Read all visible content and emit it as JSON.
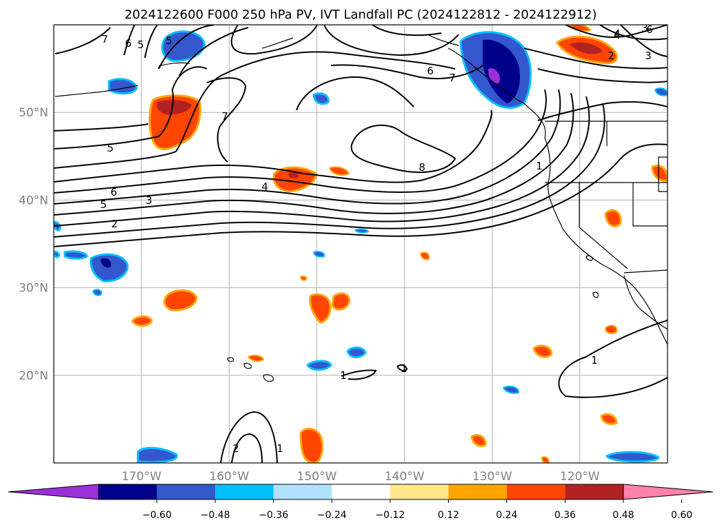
{
  "title": "2024122600 F000 250 hPa PV, IVT Landfall PC (2024122812 - 2024122912)",
  "map": {
    "lon_range": [
      -180,
      -110
    ],
    "lat_range": [
      10,
      60
    ],
    "grid": true,
    "lon_ticks": [
      {
        "lon": -170,
        "label": "170°W"
      },
      {
        "lon": -160,
        "label": "160°W"
      },
      {
        "lon": -150,
        "label": "150°W"
      },
      {
        "lon": -140,
        "label": "140°W"
      },
      {
        "lon": -130,
        "label": "130°W"
      },
      {
        "lon": -120,
        "label": "120°W"
      }
    ],
    "lat_ticks": [
      {
        "lat": 50,
        "label": "50°N"
      },
      {
        "lat": 40,
        "label": "40°N"
      },
      {
        "lat": 30,
        "label": "30°N"
      },
      {
        "lat": 20,
        "label": "20°N"
      }
    ],
    "contour_labels": [
      "7",
      "6",
      "5",
      "5",
      "3",
      "4",
      "7",
      "5",
      "6",
      "5",
      "3",
      "2",
      "4",
      "6",
      "7",
      "8",
      "1",
      "4",
      "6",
      "2",
      "3",
      "1",
      "1",
      "2",
      "1",
      "1"
    ]
  },
  "colorbar": {
    "colors": [
      "#9b30d9",
      "#00008b",
      "#3357cc",
      "#00bfff",
      "#b0e2ff",
      "#ffffff",
      "#ffe68a",
      "#ffa500",
      "#ff4500",
      "#b22222",
      "#ff82ab"
    ],
    "tick_labels": [
      "−0.60",
      "−0.48",
      "−0.36",
      "−0.24",
      "−0.12",
      "0.12",
      "0.24",
      "0.36",
      "0.48",
      "0.60"
    ]
  }
}
